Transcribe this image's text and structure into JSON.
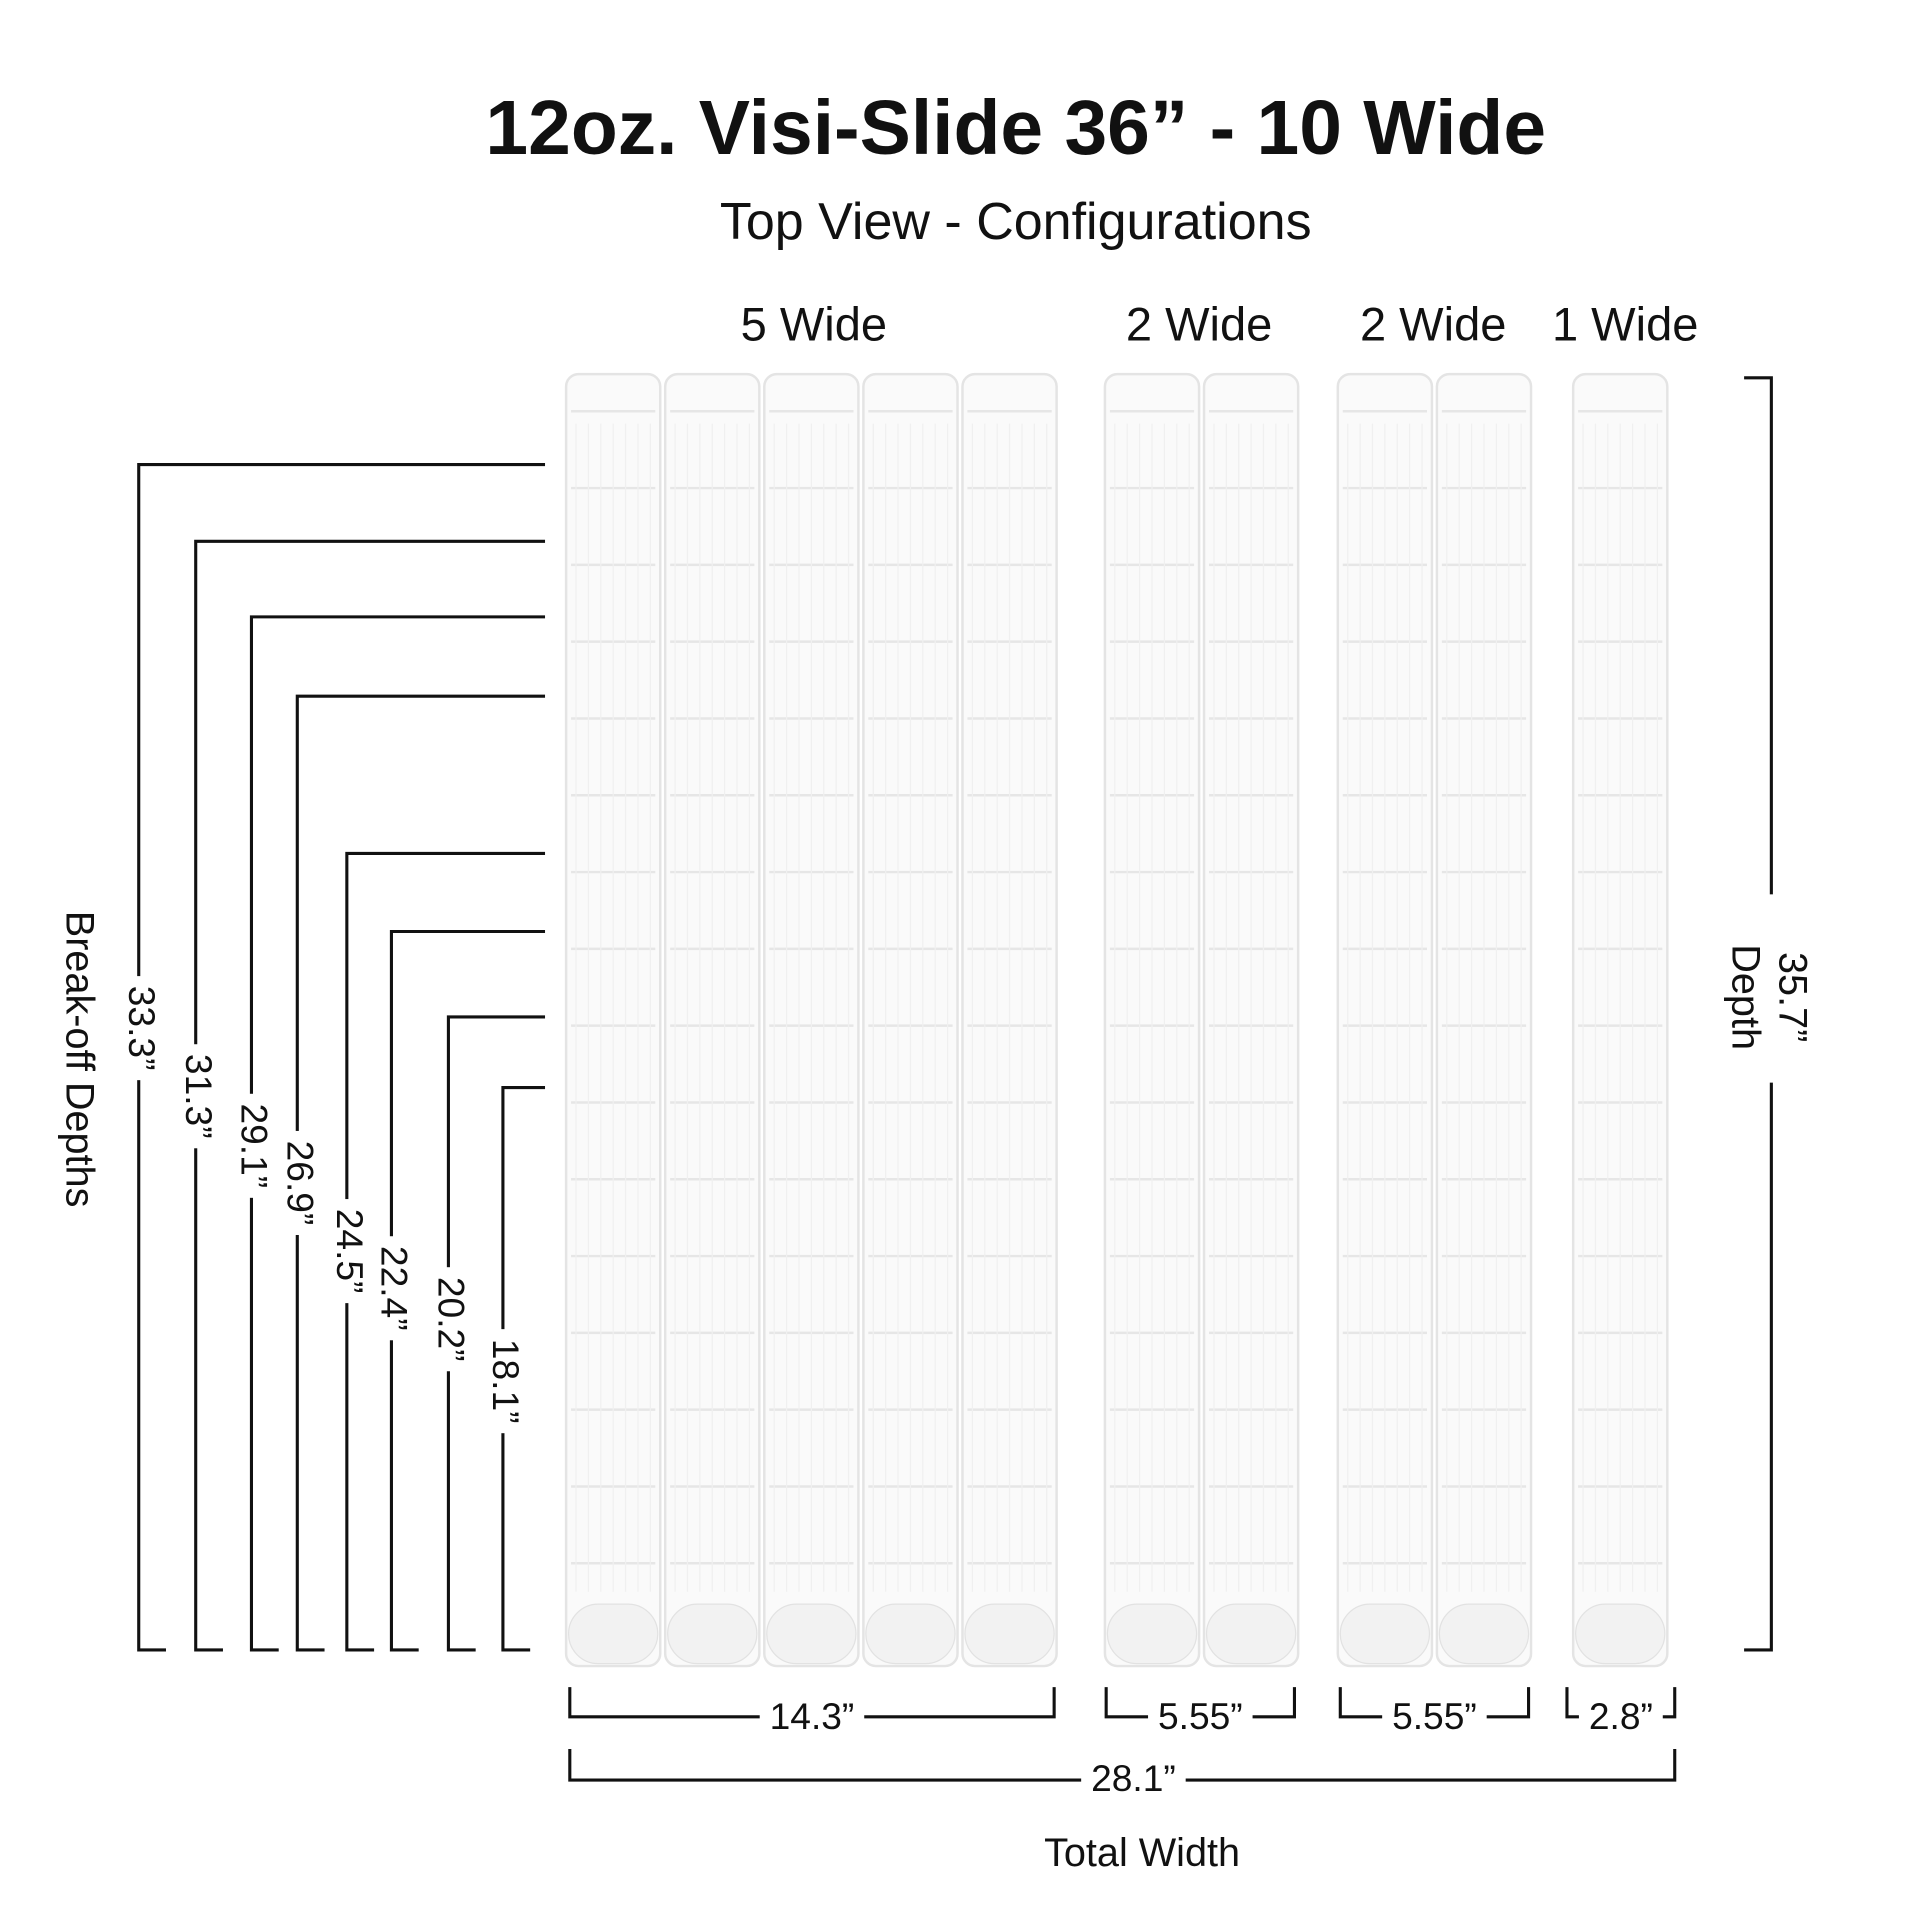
{
  "title": "12oz. Visi-Slide 36” - 10 Wide",
  "subtitle": "Top View - Configurations",
  "groups": [
    {
      "label": "5 Wide",
      "width": "14.3”"
    },
    {
      "label": "2 Wide",
      "width": "5.55”"
    },
    {
      "label": "2 Wide",
      "width": "5.55”"
    },
    {
      "label": "1 Wide",
      "width": "2.8”"
    }
  ],
  "depth": {
    "value": "35.7”",
    "label": "Depth"
  },
  "break_off": {
    "label": "Break-off Depths",
    "depths": [
      "33.3”",
      "31.3”",
      "29.1”",
      "26.9”",
      "24.5”",
      "22.4”",
      "20.2”",
      "18.1”"
    ]
  },
  "total": {
    "value": "28.1”",
    "label": "Total Width"
  }
}
